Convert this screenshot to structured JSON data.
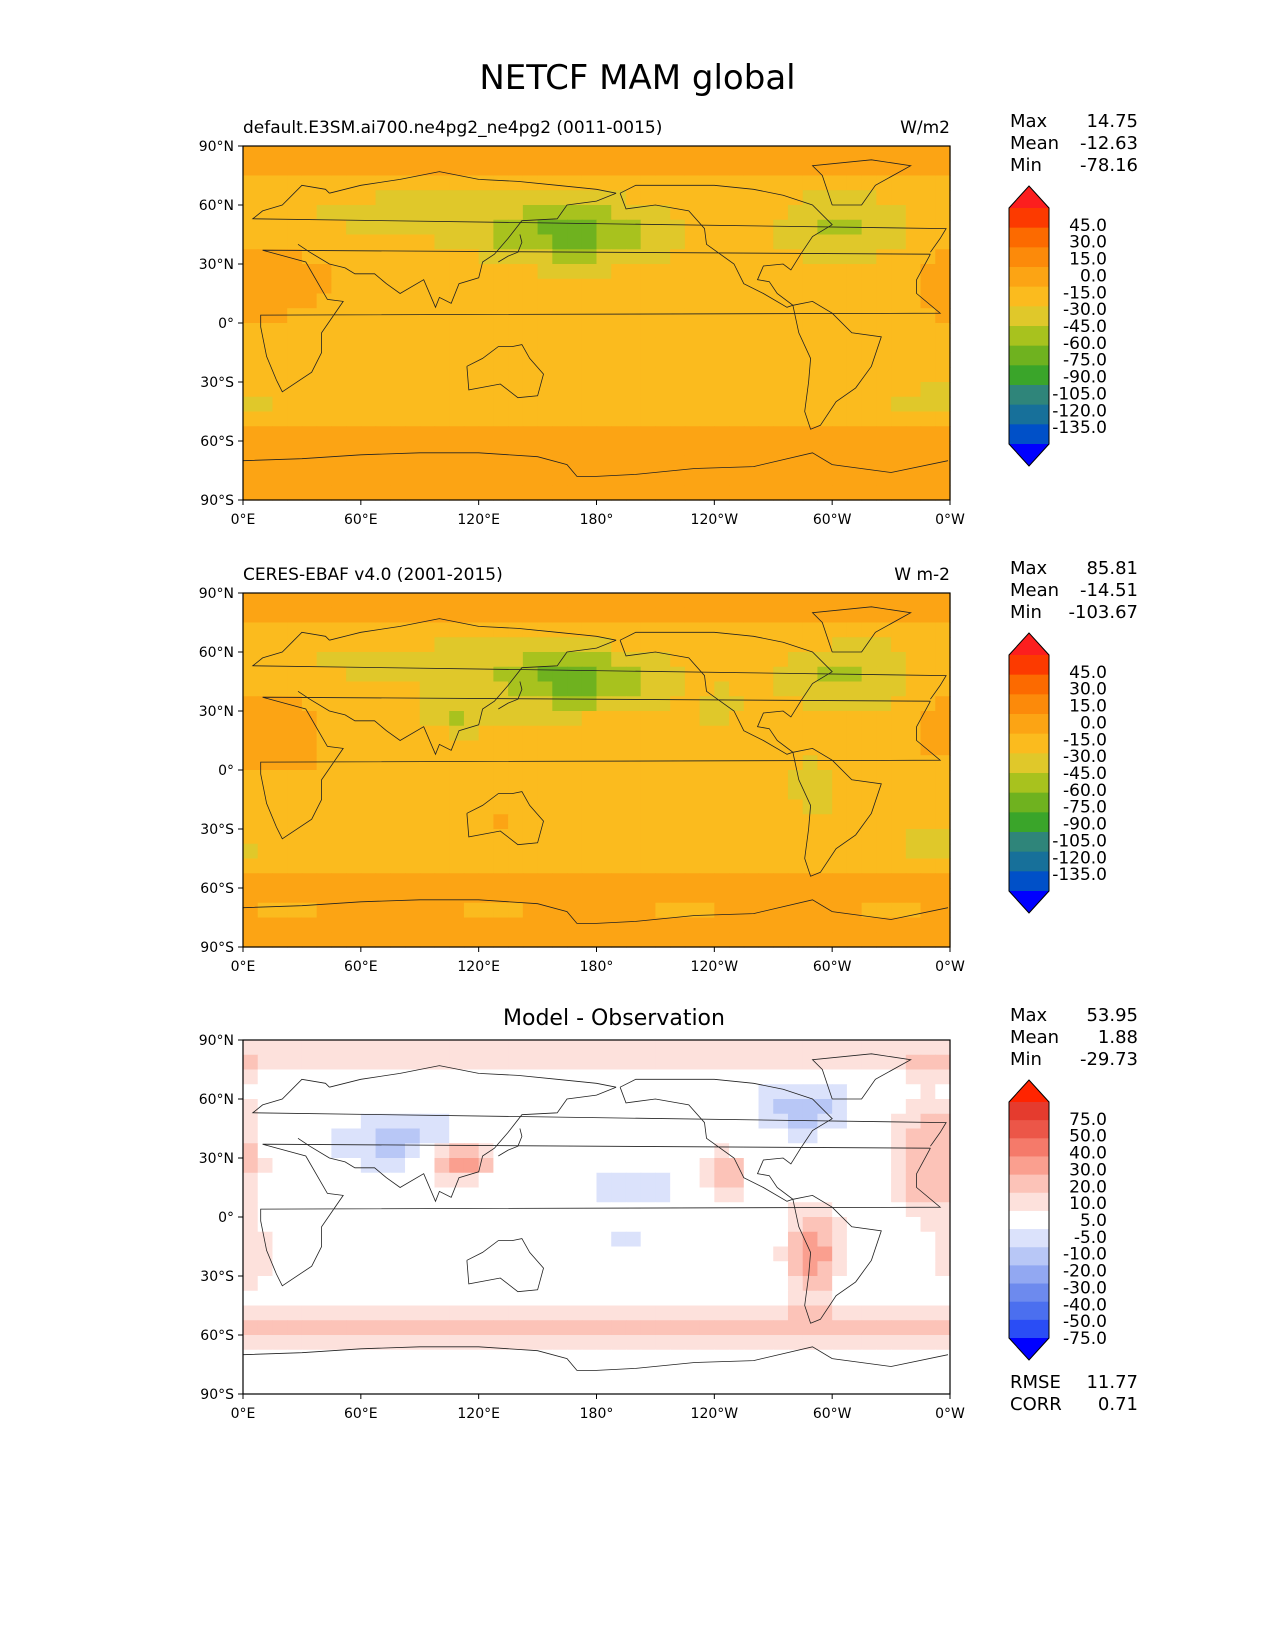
{
  "figure_title": "NETCF MAM global",
  "colors": {
    "main_levels": [
      "#0000ff",
      "#0050c8",
      "#17709a",
      "#2f857a",
      "#3aa52a",
      "#6fb21f",
      "#a8c21e",
      "#e0c82a",
      "#fbbb1e",
      "#fca414",
      "#fc8a0a",
      "#fc6a00",
      "#fc3a00",
      "#fc1e1e"
    ],
    "diff_levels": [
      "#0000ff",
      "#2a4df5",
      "#4b6fef",
      "#6d8aee",
      "#92a8f2",
      "#b8c7f6",
      "#dbe2fb",
      "#ffffff",
      "#fde1dc",
      "#fcc3b8",
      "#fa9f8f",
      "#f57a6a",
      "#ec5648",
      "#e53b2e",
      "#ff2400"
    ]
  },
  "panels": [
    {
      "id": "model",
      "title_left": "default.E3SM.ai700.ne4pg2_ne4pg2 (0011-0015)",
      "title_right": "W/m2",
      "title_center": "",
      "stats": [
        {
          "label": "Max",
          "value": "14.75"
        },
        {
          "label": "Mean",
          "value": "-12.63"
        },
        {
          "label": "Min",
          "value": "-78.16"
        }
      ],
      "colorbar_labels": [
        "45.0",
        "30.0",
        "15.0",
        "0.0",
        "-15.0",
        "-30.0",
        "-45.0",
        "-60.0",
        "-75.0",
        "-90.0",
        "-105.0",
        "-120.0",
        "-135.0"
      ],
      "extra_stats": []
    },
    {
      "id": "obs",
      "title_left": "CERES-EBAF v4.0 (2001-2015)",
      "title_right": "W m-2",
      "title_center": "",
      "stats": [
        {
          "label": "Max",
          "value": "85.81"
        },
        {
          "label": "Mean",
          "value": "-14.51"
        },
        {
          "label": "Min",
          "value": "-103.67"
        }
      ],
      "colorbar_labels": [
        "45.0",
        "30.0",
        "15.0",
        "0.0",
        "-15.0",
        "-30.0",
        "-45.0",
        "-60.0",
        "-75.0",
        "-90.0",
        "-105.0",
        "-120.0",
        "-135.0"
      ],
      "extra_stats": []
    },
    {
      "id": "diff",
      "title_left": "",
      "title_right": "",
      "title_center": "Model - Observation",
      "stats": [
        {
          "label": "Max",
          "value": "53.95"
        },
        {
          "label": "Mean",
          "value": "1.88"
        },
        {
          "label": "Min",
          "value": "-29.73"
        }
      ],
      "colorbar_labels": [
        "75.0",
        "50.0",
        "40.0",
        "30.0",
        "20.0",
        "10.0",
        "5.0",
        "-5.0",
        "-10.0",
        "-20.0",
        "-30.0",
        "-40.0",
        "-50.0",
        "-75.0"
      ],
      "extra_stats": [
        {
          "label": "RMSE",
          "value": "11.77"
        },
        {
          "label": "CORR",
          "value": "0.71"
        }
      ]
    }
  ],
  "chart_data": [
    {
      "type": "heatmap",
      "title": "default.E3SM.ai700.ne4pg2_ne4pg2 (0011-0015)",
      "units": "W/m2",
      "x_ticks": [
        "0°E",
        "60°E",
        "120°E",
        "180°",
        "120°W",
        "60°W",
        "0°W"
      ],
      "y_ticks": [
        "90°N",
        "60°N",
        "30°N",
        "0°",
        "30°S",
        "60°S",
        "90°S"
      ],
      "xlim": [
        0,
        360
      ],
      "ylim": [
        -90,
        90
      ],
      "max": 14.75,
      "mean": -12.63,
      "min": -78.16,
      "colorbar_levels": [
        45,
        30,
        15,
        0,
        -15,
        -30,
        -45,
        -60,
        -75,
        -90,
        -105,
        -120,
        -135
      ]
    },
    {
      "type": "heatmap",
      "title": "CERES-EBAF v4.0 (2001-2015)",
      "units": "W m-2",
      "x_ticks": [
        "0°E",
        "60°E",
        "120°E",
        "180°",
        "120°W",
        "60°W",
        "0°W"
      ],
      "y_ticks": [
        "90°N",
        "60°N",
        "30°N",
        "0°",
        "30°S",
        "60°S",
        "90°S"
      ],
      "xlim": [
        0,
        360
      ],
      "ylim": [
        -90,
        90
      ],
      "max": 85.81,
      "mean": -14.51,
      "min": -103.67,
      "colorbar_levels": [
        45,
        30,
        15,
        0,
        -15,
        -30,
        -45,
        -60,
        -75,
        -90,
        -105,
        -120,
        -135
      ]
    },
    {
      "type": "heatmap",
      "title": "Model - Observation",
      "x_ticks": [
        "0°E",
        "60°E",
        "120°E",
        "180°",
        "120°W",
        "60°W",
        "0°W"
      ],
      "y_ticks": [
        "90°N",
        "60°N",
        "30°N",
        "0°",
        "30°S",
        "60°S",
        "90°S"
      ],
      "xlim": [
        0,
        360
      ],
      "ylim": [
        -90,
        90
      ],
      "max": 53.95,
      "mean": 1.88,
      "min": -29.73,
      "rmse": 11.77,
      "corr": 0.71,
      "colorbar_levels": [
        75,
        50,
        40,
        30,
        20,
        10,
        5,
        -5,
        -10,
        -20,
        -30,
        -40,
        -50,
        -75
      ]
    }
  ]
}
